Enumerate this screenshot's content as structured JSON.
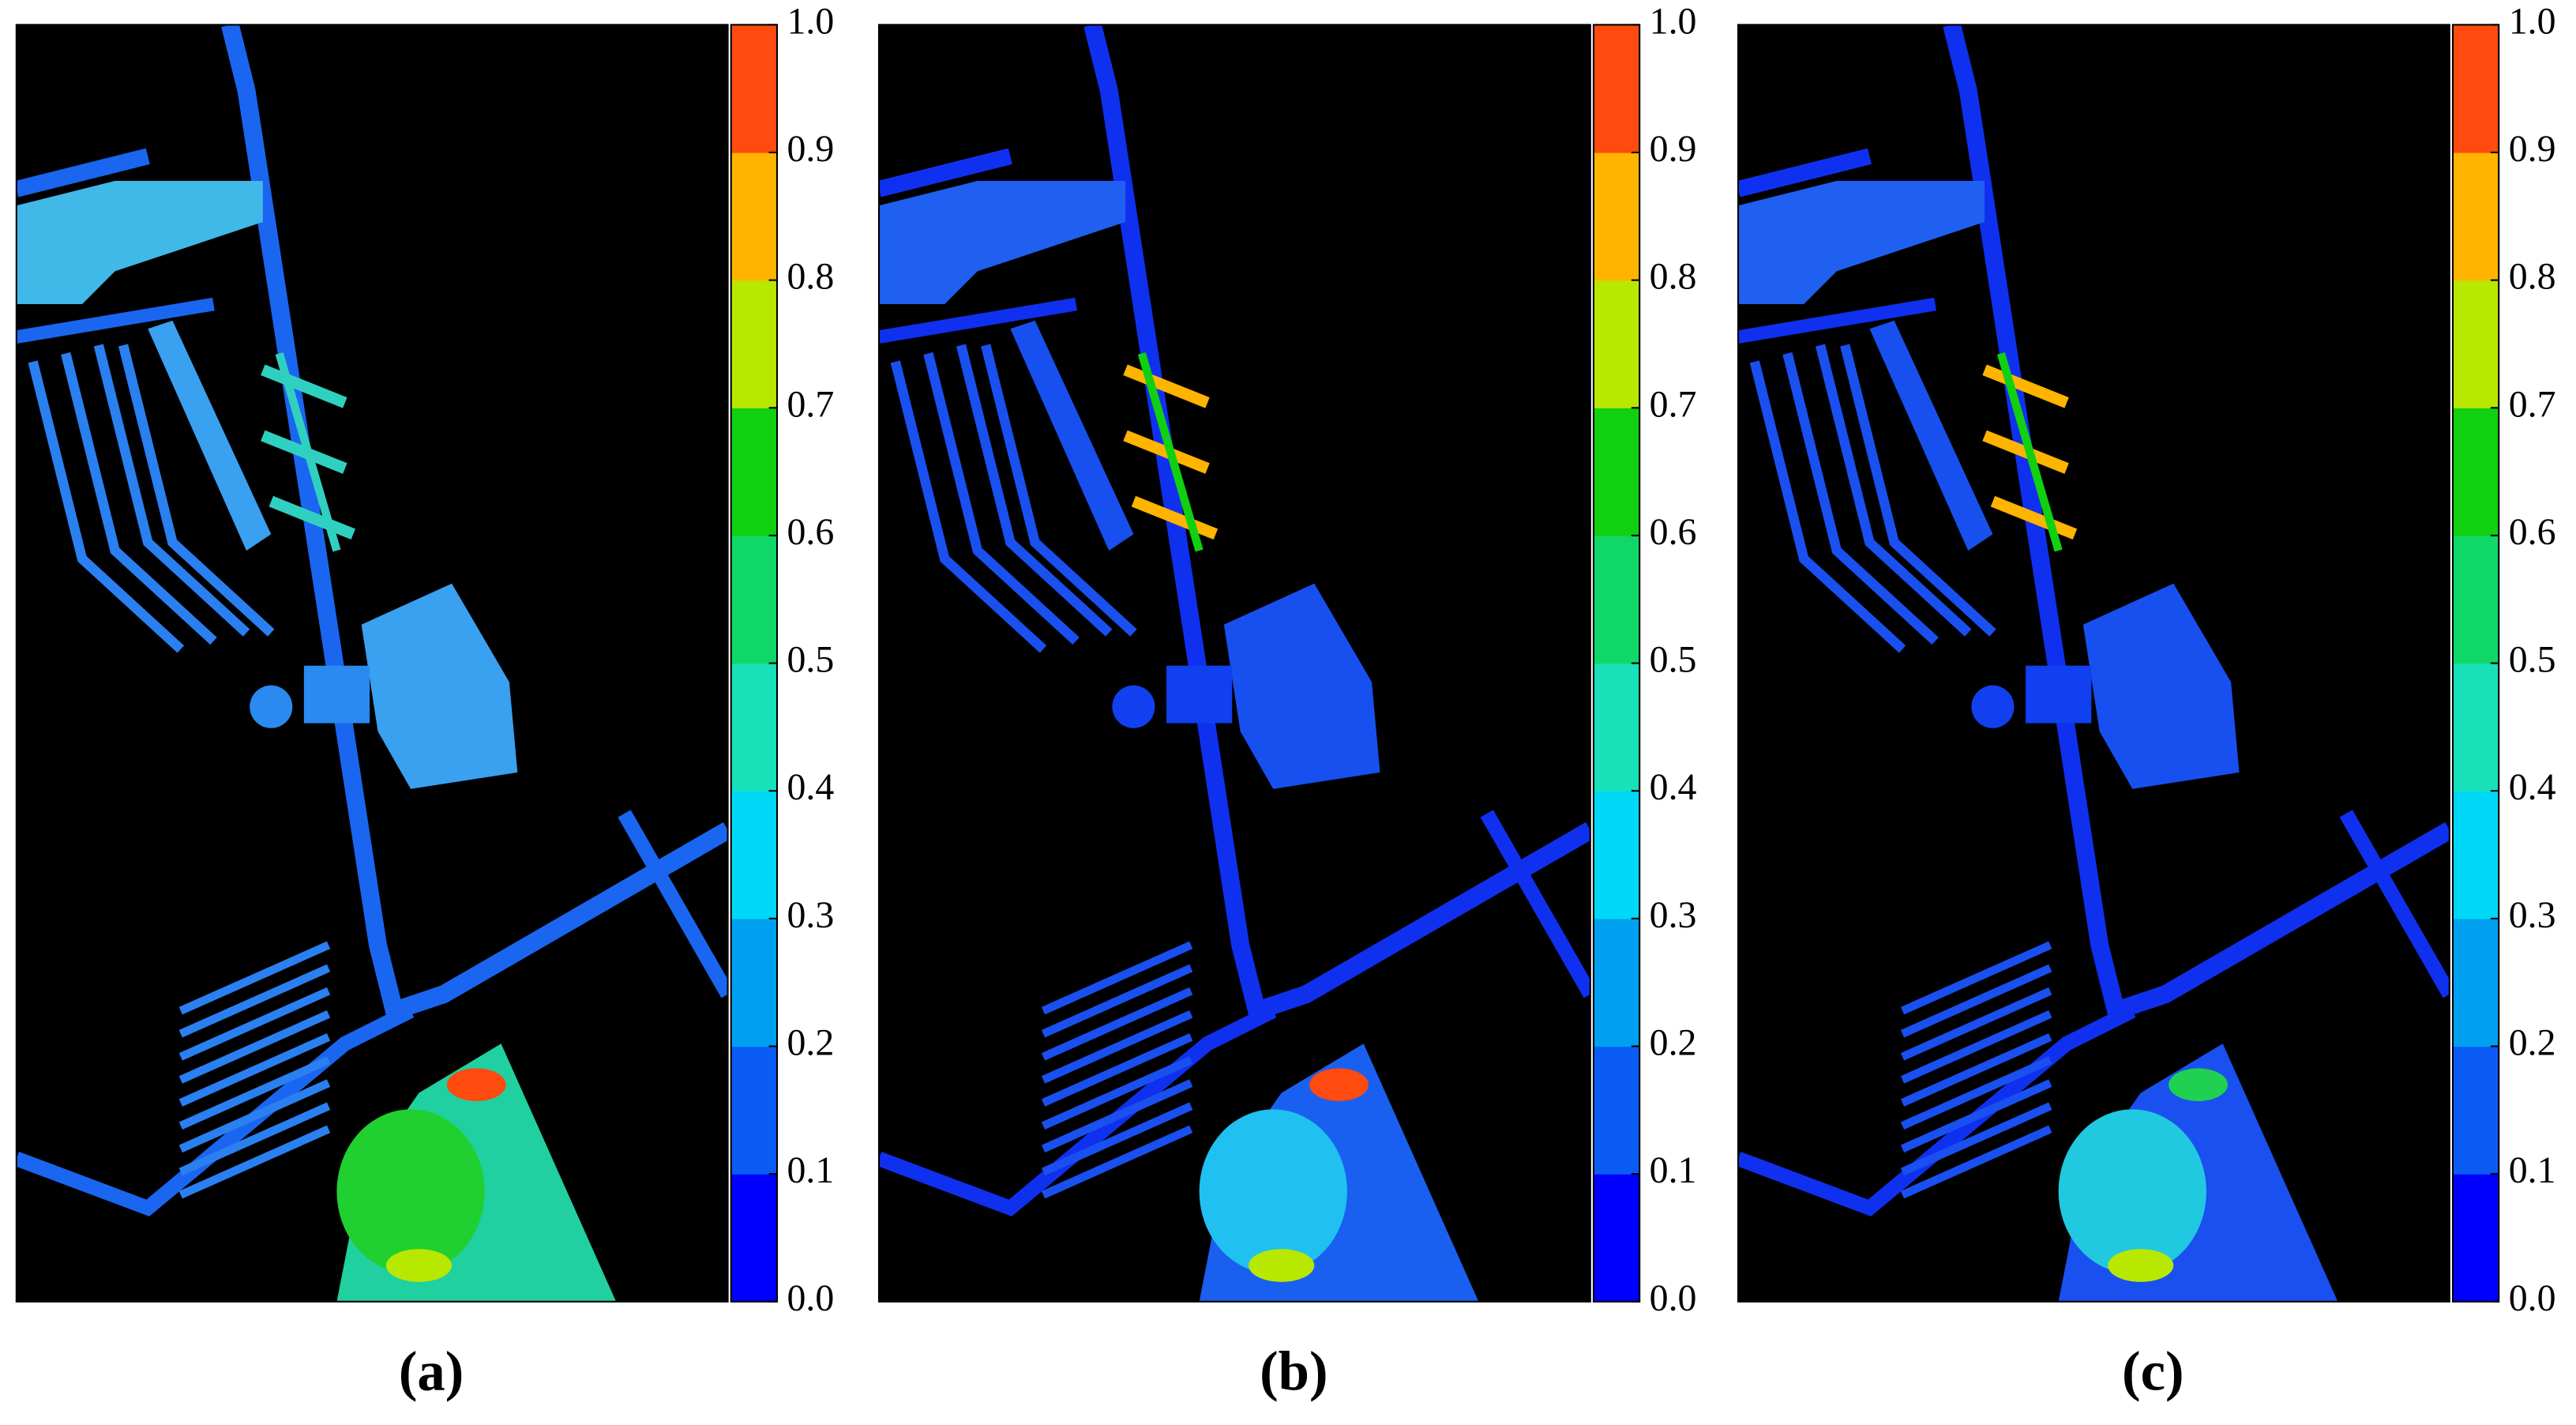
{
  "chart_data": [
    {
      "type": "heatmap",
      "caption": "(a)",
      "zlim": [
        0,
        1
      ],
      "zticks": [
        {
          "value": 0,
          "label": "0.0"
        },
        0.1,
        0.2,
        0.3,
        0.4,
        0.5,
        0.6,
        0.7,
        0.8,
        0.9,
        {
          "value": 1,
          "label": "1.0"
        }
      ],
      "colors": [
        "#0000ff",
        "#0a5cf5",
        "#00a0f0",
        "#00d8f8",
        "#18e0b8",
        "#10d868",
        "#10d010",
        "#b8e800",
        "#ffb400",
        "#ff4a10"
      ]
    },
    {
      "type": "heatmap",
      "caption": "(b)",
      "zlim": [
        0,
        1
      ],
      "zticks": [
        {
          "value": 0,
          "label": "0.0"
        },
        0.1,
        0.2,
        0.3,
        0.4,
        0.5,
        0.6,
        0.7,
        0.8,
        0.9,
        {
          "value": 1,
          "label": "1.0"
        }
      ],
      "colors": [
        "#0000ff",
        "#0a5cf5",
        "#00a0f0",
        "#00d8f8",
        "#18e0b8",
        "#10d868",
        "#10d010",
        "#b8e800",
        "#ffb400",
        "#ff4a10"
      ]
    },
    {
      "type": "heatmap",
      "caption": "(c)",
      "zlim": [
        0,
        1
      ],
      "zticks": [
        {
          "value": 0,
          "label": "0.0"
        },
        0.1,
        0.2,
        0.3,
        0.4,
        0.5,
        0.6,
        0.7,
        0.8,
        0.9,
        {
          "value": 1,
          "label": "1.0"
        }
      ],
      "colors": [
        "#0000ff",
        "#0a5cf5",
        "#00a0f0",
        "#00d8f8",
        "#18e0b8",
        "#10d868",
        "#10d010",
        "#b8e800",
        "#ffb400",
        "#ff4a10"
      ]
    }
  ]
}
